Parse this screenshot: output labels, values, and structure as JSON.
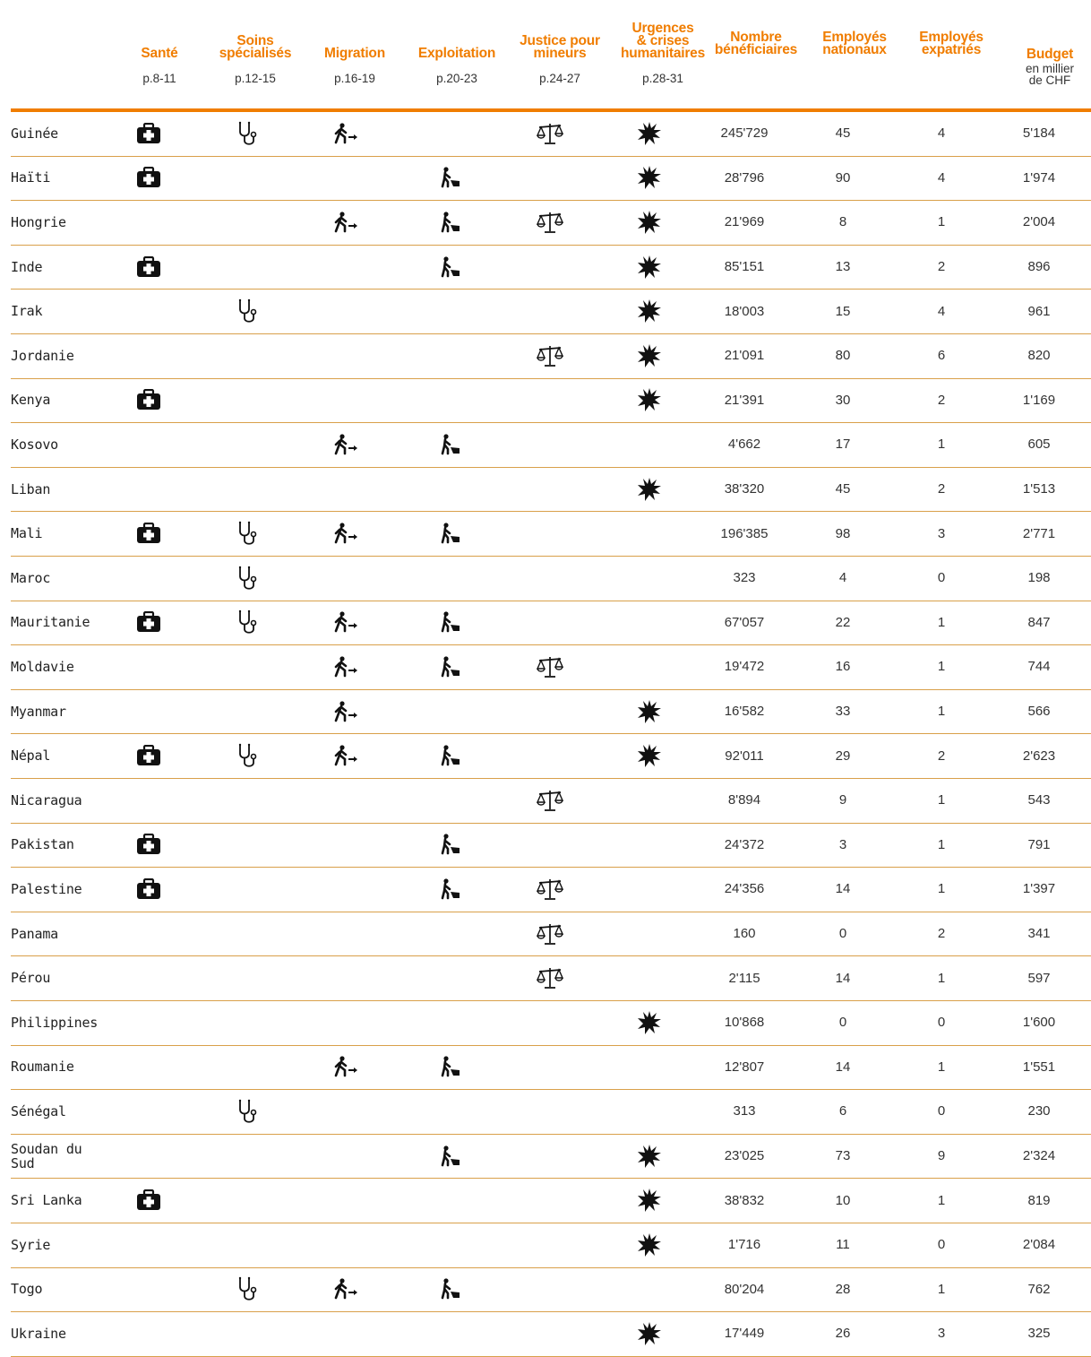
{
  "header": {
    "columns": [
      {
        "title": "Santé",
        "sub": "p.8-11"
      },
      {
        "title": "Soins\nspécialisés",
        "sub": "p.12-15"
      },
      {
        "title": "Migration",
        "sub": "p.16-19"
      },
      {
        "title": "Exploitation",
        "sub": "p.20-23"
      },
      {
        "title": "Justice pour\nmineurs",
        "sub": "p.24-27"
      },
      {
        "title": "Urgences\n& crises\nhumanitaires",
        "sub": "p.28-31"
      },
      {
        "title": "Nombre\nbénéficiaires",
        "sub": ""
      },
      {
        "title": "Employés\nnationaux",
        "sub": ""
      },
      {
        "title": "Employés\nexpatriés",
        "sub": ""
      },
      {
        "title": "Budget",
        "sub": "en millier\nde CHF"
      }
    ]
  },
  "icons": {
    "sante": "medical-kit-icon",
    "soins": "stethoscope-icon",
    "migration": "walking-person-icon",
    "exploitation": "child-labor-icon",
    "justice": "scales-icon",
    "urgences": "explosion-icon"
  },
  "colors": {
    "accent": "#f07d00",
    "divider": "#d9a04a"
  },
  "rows": [
    {
      "country": "Guinée",
      "sante": true,
      "soins": true,
      "migration": true,
      "exploitation": false,
      "justice": true,
      "urgences": true,
      "beneficiaires": "245'729",
      "nationaux": "45",
      "expatries": "4",
      "budget": "5'184"
    },
    {
      "country": "Haïti",
      "sante": true,
      "soins": false,
      "migration": false,
      "exploitation": true,
      "justice": false,
      "urgences": true,
      "beneficiaires": "28'796",
      "nationaux": "90",
      "expatries": "4",
      "budget": "1'974"
    },
    {
      "country": "Hongrie",
      "sante": false,
      "soins": false,
      "migration": true,
      "exploitation": true,
      "justice": true,
      "urgences": true,
      "beneficiaires": "21'969",
      "nationaux": "8",
      "expatries": "1",
      "budget": "2'004"
    },
    {
      "country": "Inde",
      "sante": true,
      "soins": false,
      "migration": false,
      "exploitation": true,
      "justice": false,
      "urgences": true,
      "beneficiaires": "85'151",
      "nationaux": "13",
      "expatries": "2",
      "budget": "896"
    },
    {
      "country": "Irak",
      "sante": false,
      "soins": true,
      "migration": false,
      "exploitation": false,
      "justice": false,
      "urgences": true,
      "beneficiaires": "18'003",
      "nationaux": "15",
      "expatries": "4",
      "budget": "961"
    },
    {
      "country": "Jordanie",
      "sante": false,
      "soins": false,
      "migration": false,
      "exploitation": false,
      "justice": true,
      "urgences": true,
      "beneficiaires": "21'091",
      "nationaux": "80",
      "expatries": "6",
      "budget": "820"
    },
    {
      "country": "Kenya",
      "sante": true,
      "soins": false,
      "migration": false,
      "exploitation": false,
      "justice": false,
      "urgences": true,
      "beneficiaires": "21'391",
      "nationaux": "30",
      "expatries": "2",
      "budget": "1'169"
    },
    {
      "country": "Kosovo",
      "sante": false,
      "soins": false,
      "migration": true,
      "exploitation": true,
      "justice": false,
      "urgences": false,
      "beneficiaires": "4'662",
      "nationaux": "17",
      "expatries": "1",
      "budget": "605"
    },
    {
      "country": "Liban",
      "sante": false,
      "soins": false,
      "migration": false,
      "exploitation": false,
      "justice": false,
      "urgences": true,
      "beneficiaires": "38'320",
      "nationaux": "45",
      "expatries": "2",
      "budget": "1'513"
    },
    {
      "country": "Mali",
      "sante": true,
      "soins": true,
      "migration": true,
      "exploitation": true,
      "justice": false,
      "urgences": false,
      "beneficiaires": "196'385",
      "nationaux": "98",
      "expatries": "3",
      "budget": "2'771"
    },
    {
      "country": "Maroc",
      "sante": false,
      "soins": true,
      "migration": false,
      "exploitation": false,
      "justice": false,
      "urgences": false,
      "beneficiaires": "323",
      "nationaux": "4",
      "expatries": "0",
      "budget": "198"
    },
    {
      "country": "Mauritanie",
      "sante": true,
      "soins": true,
      "migration": true,
      "exploitation": true,
      "justice": false,
      "urgences": false,
      "beneficiaires": "67'057",
      "nationaux": "22",
      "expatries": "1",
      "budget": "847"
    },
    {
      "country": "Moldavie",
      "sante": false,
      "soins": false,
      "migration": true,
      "exploitation": true,
      "justice": true,
      "urgences": false,
      "beneficiaires": "19'472",
      "nationaux": "16",
      "expatries": "1",
      "budget": "744"
    },
    {
      "country": "Myanmar",
      "sante": false,
      "soins": false,
      "migration": true,
      "exploitation": false,
      "justice": false,
      "urgences": true,
      "beneficiaires": "16'582",
      "nationaux": "33",
      "expatries": "1",
      "budget": "566"
    },
    {
      "country": "Népal",
      "sante": true,
      "soins": true,
      "migration": true,
      "exploitation": true,
      "justice": false,
      "urgences": true,
      "beneficiaires": "92'011",
      "nationaux": "29",
      "expatries": "2",
      "budget": "2'623"
    },
    {
      "country": "Nicaragua",
      "sante": false,
      "soins": false,
      "migration": false,
      "exploitation": false,
      "justice": true,
      "urgences": false,
      "beneficiaires": "8'894",
      "nationaux": "9",
      "expatries": "1",
      "budget": "543"
    },
    {
      "country": "Pakistan",
      "sante": true,
      "soins": false,
      "migration": false,
      "exploitation": true,
      "justice": false,
      "urgences": false,
      "beneficiaires": "24'372",
      "nationaux": "3",
      "expatries": "1",
      "budget": "791"
    },
    {
      "country": "Palestine",
      "sante": true,
      "soins": false,
      "migration": false,
      "exploitation": true,
      "justice": true,
      "urgences": false,
      "beneficiaires": "24'356",
      "nationaux": "14",
      "expatries": "1",
      "budget": "1'397"
    },
    {
      "country": "Panama",
      "sante": false,
      "soins": false,
      "migration": false,
      "exploitation": false,
      "justice": true,
      "urgences": false,
      "beneficiaires": "160",
      "nationaux": "0",
      "expatries": "2",
      "budget": "341"
    },
    {
      "country": "Pérou",
      "sante": false,
      "soins": false,
      "migration": false,
      "exploitation": false,
      "justice": true,
      "urgences": false,
      "beneficiaires": "2'115",
      "nationaux": "14",
      "expatries": "1",
      "budget": "597"
    },
    {
      "country": "Philippines",
      "sante": false,
      "soins": false,
      "migration": false,
      "exploitation": false,
      "justice": false,
      "urgences": true,
      "beneficiaires": "10'868",
      "nationaux": "0",
      "expatries": "0",
      "budget": "1'600"
    },
    {
      "country": "Roumanie",
      "sante": false,
      "soins": false,
      "migration": true,
      "exploitation": true,
      "justice": false,
      "urgences": false,
      "beneficiaires": "12'807",
      "nationaux": "14",
      "expatries": "1",
      "budget": "1'551"
    },
    {
      "country": "Sénégal",
      "sante": false,
      "soins": true,
      "migration": false,
      "exploitation": false,
      "justice": false,
      "urgences": false,
      "beneficiaires": "313",
      "nationaux": "6",
      "expatries": "0",
      "budget": "230"
    },
    {
      "country": "Soudan du\nSud",
      "sante": false,
      "soins": false,
      "migration": false,
      "exploitation": true,
      "justice": false,
      "urgences": true,
      "beneficiaires": "23'025",
      "nationaux": "73",
      "expatries": "9",
      "budget": "2'324"
    },
    {
      "country": "Sri Lanka",
      "sante": true,
      "soins": false,
      "migration": false,
      "exploitation": false,
      "justice": false,
      "urgences": true,
      "beneficiaires": "38'832",
      "nationaux": "10",
      "expatries": "1",
      "budget": "819"
    },
    {
      "country": "Syrie",
      "sante": false,
      "soins": false,
      "migration": false,
      "exploitation": false,
      "justice": false,
      "urgences": true,
      "beneficiaires": "1'716",
      "nationaux": "11",
      "expatries": "0",
      "budget": "2'084"
    },
    {
      "country": "Togo",
      "sante": false,
      "soins": true,
      "migration": true,
      "exploitation": true,
      "justice": false,
      "urgences": false,
      "beneficiaires": "80'204",
      "nationaux": "28",
      "expatries": "1",
      "budget": "762"
    },
    {
      "country": "Ukraine",
      "sante": false,
      "soins": false,
      "migration": false,
      "exploitation": false,
      "justice": false,
      "urgences": true,
      "beneficiaires": "17'449",
      "nationaux": "26",
      "expatries": "3",
      "budget": "325"
    }
  ]
}
